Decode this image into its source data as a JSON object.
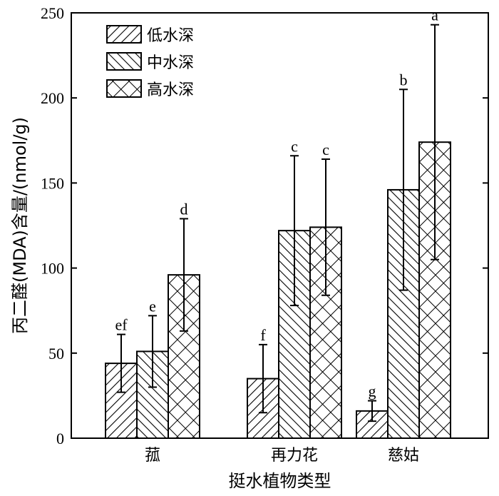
{
  "chart_data": {
    "type": "bar",
    "title": "",
    "xlabel": "挺水植物类型",
    "ylabel": "丙二醛(MDA)含量/(nmol/g)",
    "ylim": [
      0,
      250
    ],
    "yticks": [
      0,
      50,
      100,
      150,
      200,
      250
    ],
    "categories": [
      "菰",
      "再力花",
      "慈姑"
    ],
    "series": [
      {
        "name": "低水深",
        "pattern": "diagonal-forward",
        "values": [
          44,
          35,
          16
        ],
        "errors": [
          17,
          20,
          6
        ],
        "sig": [
          "ef",
          "f",
          "g"
        ]
      },
      {
        "name": "中水深",
        "pattern": "diagonal-backward",
        "values": [
          51,
          122,
          146
        ],
        "errors": [
          21,
          44,
          59
        ],
        "sig": [
          "e",
          "c",
          "b"
        ]
      },
      {
        "name": "高水深",
        "pattern": "crosshatch",
        "values": [
          96,
          124,
          174
        ],
        "errors": [
          33,
          40,
          69
        ],
        "sig": [
          "d",
          "c",
          "a"
        ]
      }
    ],
    "legend_position": "top-left",
    "grid": false,
    "colors": {
      "bar_fill": "#ffffff",
      "stroke": "#000000"
    }
  }
}
